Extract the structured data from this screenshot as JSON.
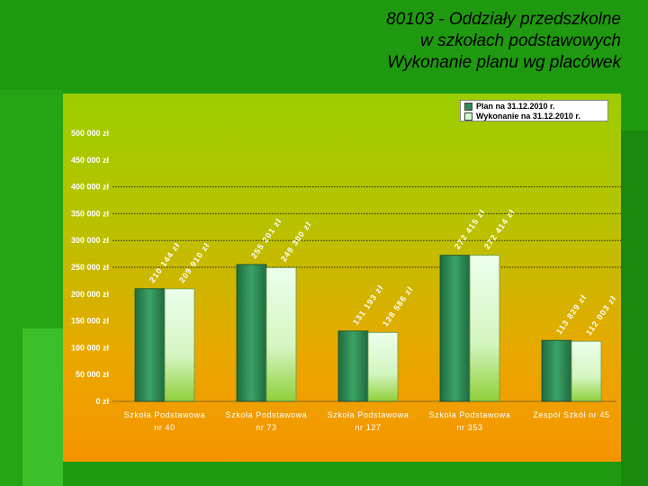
{
  "title": {
    "line1": "80103 - Oddziały przedszkolne",
    "line2": "w szkołach podstawowych",
    "line3": "Wykonanie planu wg placówek"
  },
  "colors": {
    "plan": "#2e8b57",
    "wykonanie": "#ccffcc"
  },
  "chart_data": {
    "type": "bar",
    "title": "Wykonanie planu wg placówek",
    "categories": [
      [
        "Szkoła Podstawowa",
        "nr 40"
      ],
      [
        "Szkoła Podstawowa",
        "nr 73"
      ],
      [
        "Szkoła Podstawowa",
        "nr 127"
      ],
      [
        "Szkoła Podstawowa",
        "nr 353"
      ],
      [
        "Zespół Szkół nr 45"
      ]
    ],
    "series": [
      {
        "name": "Plan na 31.12.2010 r.",
        "values": [
          210144,
          255201,
          131193,
          272415,
          113829
        ],
        "labels": [
          "210 144 zł",
          "255 201 zł",
          "131 193 zł",
          "272 415 zł",
          "113 829 zł"
        ]
      },
      {
        "name": "Wykonanie na 31.12.2010 r.",
        "values": [
          209910,
          249300,
          128586,
          272414,
          112003
        ],
        "labels": [
          "209 910 zł",
          "249 300 zł",
          "128 586 zł",
          "272 414 zł",
          "112 003 zł"
        ]
      }
    ],
    "y_ticks": [
      {
        "value": 0,
        "label": "0 zł"
      },
      {
        "value": 50000,
        "label": "50 000 zł"
      },
      {
        "value": 100000,
        "label": "100 000 zł"
      },
      {
        "value": 150000,
        "label": "150 000 zł"
      },
      {
        "value": 200000,
        "label": "200 000 zł"
      },
      {
        "value": 250000,
        "label": "250 000 zł"
      },
      {
        "value": 300000,
        "label": "300 000 zł"
      },
      {
        "value": 350000,
        "label": "350 000 zł"
      },
      {
        "value": 400000,
        "label": "400 000 zł"
      },
      {
        "value": 450000,
        "label": "450 000 zł"
      },
      {
        "value": 500000,
        "label": "500 000 zł"
      }
    ],
    "gridlines_at": [
      250000,
      300000,
      350000,
      400000
    ],
    "ylim": [
      0,
      500000
    ],
    "legend_position": "top-right"
  }
}
